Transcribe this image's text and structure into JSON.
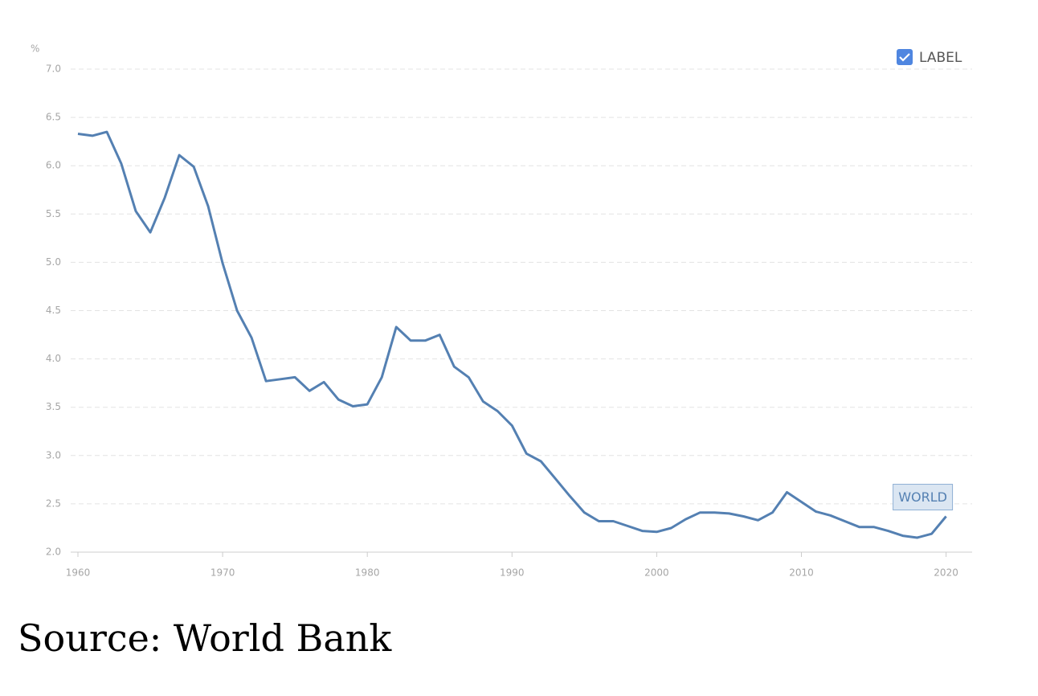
{
  "chart_data": {
    "type": "line",
    "y_unit": "%",
    "x": [
      1960,
      1961,
      1962,
      1963,
      1964,
      1965,
      1966,
      1967,
      1968,
      1969,
      1970,
      1971,
      1972,
      1973,
      1974,
      1975,
      1976,
      1977,
      1978,
      1979,
      1980,
      1981,
      1982,
      1983,
      1984,
      1985,
      1986,
      1987,
      1988,
      1989,
      1990,
      1991,
      1992,
      1993,
      1994,
      1995,
      1996,
      1997,
      1998,
      1999,
      2000,
      2001,
      2002,
      2003,
      2004,
      2005,
      2006,
      2007,
      2008,
      2009,
      2010,
      2011,
      2012,
      2013,
      2014,
      2015,
      2016,
      2017,
      2018,
      2019,
      2020
    ],
    "series": [
      {
        "name": "LABEL",
        "color": "#5480b2",
        "values": [
          6.33,
          6.31,
          6.35,
          6.02,
          5.53,
          5.31,
          5.67,
          6.11,
          5.99,
          5.58,
          4.99,
          4.5,
          4.22,
          3.77,
          3.79,
          3.81,
          3.67,
          3.76,
          3.58,
          3.51,
          3.53,
          3.81,
          4.33,
          4.19,
          4.19,
          4.25,
          3.92,
          3.81,
          3.56,
          3.46,
          3.31,
          3.02,
          2.94,
          2.76,
          2.58,
          2.41,
          2.32,
          2.32,
          2.27,
          2.22,
          2.21,
          2.25,
          2.34,
          2.41,
          2.41,
          2.4,
          2.37,
          2.33,
          2.41,
          2.62,
          2.52,
          2.42,
          2.38,
          2.32,
          2.26,
          2.26,
          2.22,
          2.17,
          2.15,
          2.19,
          2.37
        ]
      }
    ],
    "annotation": "WORLD",
    "xlim": [
      1959.5,
      2021.8
    ],
    "xticks": [
      1960,
      1970,
      1980,
      1990,
      2000,
      2010,
      2020
    ],
    "ylim": [
      2,
      7
    ],
    "yticks": [
      {
        "value": 2,
        "label": "2.0"
      },
      2.5,
      {
        "value": 3,
        "label": "3.0"
      },
      3.5,
      {
        "value": 4,
        "label": "4.0"
      },
      4.5,
      {
        "value": 5,
        "label": "5.0"
      },
      5.5,
      {
        "value": 6,
        "label": "6.0"
      },
      6.5,
      {
        "value": 7,
        "label": "7.0"
      }
    ],
    "grid": true,
    "legend": "top-right",
    "source": "Source:  World Bank"
  }
}
